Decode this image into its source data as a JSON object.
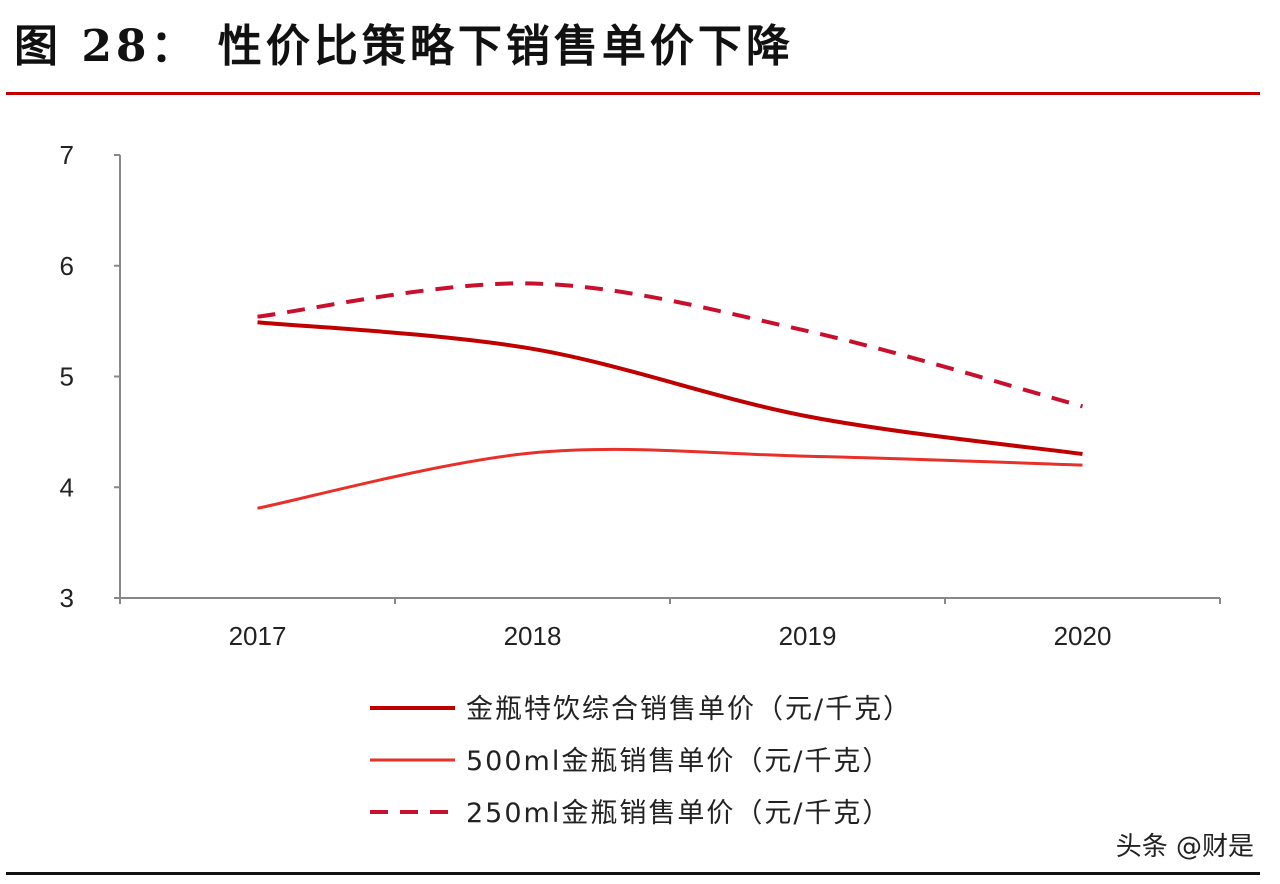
{
  "title": "图 28： 性价比策略下销售单价下降",
  "watermark": "头条 @财是",
  "chart_data": {
    "type": "line",
    "title": "",
    "xlabel": "",
    "ylabel": "",
    "categories": [
      "2017",
      "2018",
      "2019",
      "2020"
    ],
    "ylim": [
      3,
      7
    ],
    "yticks": [
      "3",
      "4",
      "5",
      "6",
      "7"
    ],
    "grid": false,
    "legend_position": "bottom",
    "series": [
      {
        "name": "金瓶特饮综合销售单价（元/千克）",
        "values": [
          5.49,
          5.25,
          4.64,
          4.3
        ],
        "color": "#c00000",
        "style": "solid",
        "width": 4
      },
      {
        "name": "500ml金瓶销售单价（元/千克）",
        "values": [
          3.81,
          4.31,
          4.28,
          4.2
        ],
        "color": "#e8302a",
        "style": "solid",
        "width": 3
      },
      {
        "name": "250ml金瓶销售单价（元/千克）",
        "values": [
          5.54,
          5.84,
          5.41,
          4.73
        ],
        "color": "#c8102e",
        "style": "dashed",
        "width": 4
      }
    ]
  }
}
